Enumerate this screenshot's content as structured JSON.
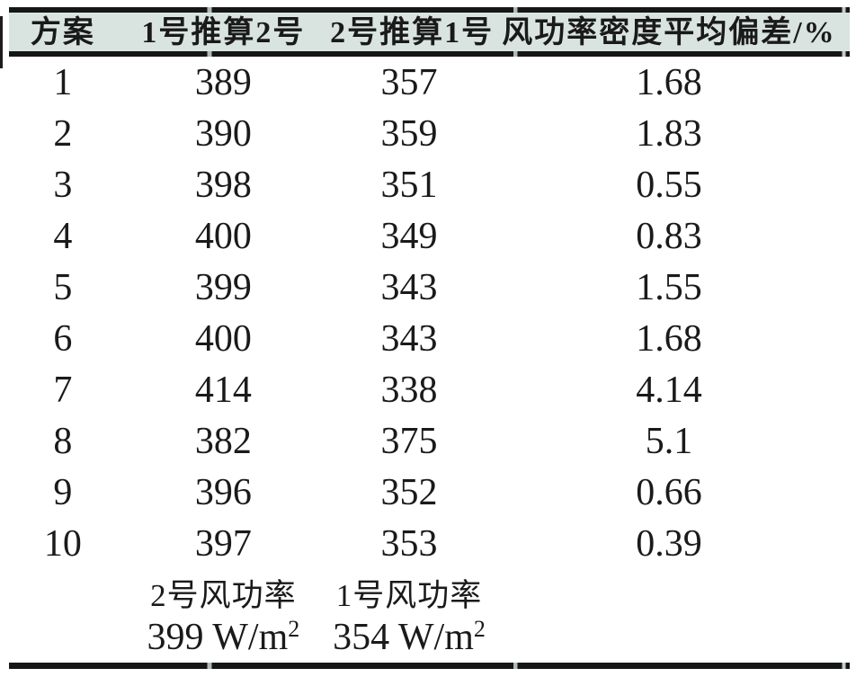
{
  "table": {
    "header_bg": "#d9e4e1",
    "rule_color": "#161616",
    "text_color": "#1a1a1a",
    "headers": [
      "方案",
      "1号推算2号",
      "2号推算1号",
      "风功率密度平均偏差/%"
    ],
    "rows": [
      {
        "scheme": "1",
        "est_1_to_2": "389",
        "est_2_to_1": "357",
        "deviation": "1.68"
      },
      {
        "scheme": "2",
        "est_1_to_2": "390",
        "est_2_to_1": "359",
        "deviation": "1.83"
      },
      {
        "scheme": "3",
        "est_1_to_2": "398",
        "est_2_to_1": "351",
        "deviation": "0.55"
      },
      {
        "scheme": "4",
        "est_1_to_2": "400",
        "est_2_to_1": "349",
        "deviation": "0.83"
      },
      {
        "scheme": "5",
        "est_1_to_2": "399",
        "est_2_to_1": "343",
        "deviation": "1.55"
      },
      {
        "scheme": "6",
        "est_1_to_2": "400",
        "est_2_to_1": "343",
        "deviation": "1.68"
      },
      {
        "scheme": "7",
        "est_1_to_2": "414",
        "est_2_to_1": "338",
        "deviation": "4.14"
      },
      {
        "scheme": "8",
        "est_1_to_2": "382",
        "est_2_to_1": "375",
        "deviation": "5.1"
      },
      {
        "scheme": "9",
        "est_1_to_2": "396",
        "est_2_to_1": "352",
        "deviation": "0.66"
      },
      {
        "scheme": "10",
        "est_1_to_2": "397",
        "est_2_to_1": "353",
        "deviation": "0.39"
      }
    ],
    "footer": {
      "col2_label": "2号风功率",
      "col3_label": "1号风功率",
      "col2_value": "399 W/m",
      "col2_value_sup": "2",
      "col3_value": "354 W/m",
      "col3_value_sup": "2"
    }
  },
  "chart_data": {
    "type": "table",
    "title": "",
    "columns": [
      "方案",
      "1号推算2号",
      "2号推算1号",
      "风功率密度平均偏差/%"
    ],
    "rows": [
      [
        "1",
        389,
        357,
        1.68
      ],
      [
        "2",
        390,
        359,
        1.83
      ],
      [
        "3",
        398,
        351,
        0.55
      ],
      [
        "4",
        400,
        349,
        0.83
      ],
      [
        "5",
        399,
        343,
        1.55
      ],
      [
        "6",
        400,
        343,
        1.68
      ],
      [
        "7",
        414,
        338,
        4.14
      ],
      [
        "8",
        382,
        375,
        5.1
      ],
      [
        "9",
        396,
        352,
        0.66
      ],
      [
        "10",
        397,
        353,
        0.39
      ]
    ],
    "footer_rows": [
      [
        "",
        "2号风功率",
        "1号风功率",
        ""
      ],
      [
        "",
        "399 W/m^2",
        "354 W/m^2",
        ""
      ]
    ]
  }
}
